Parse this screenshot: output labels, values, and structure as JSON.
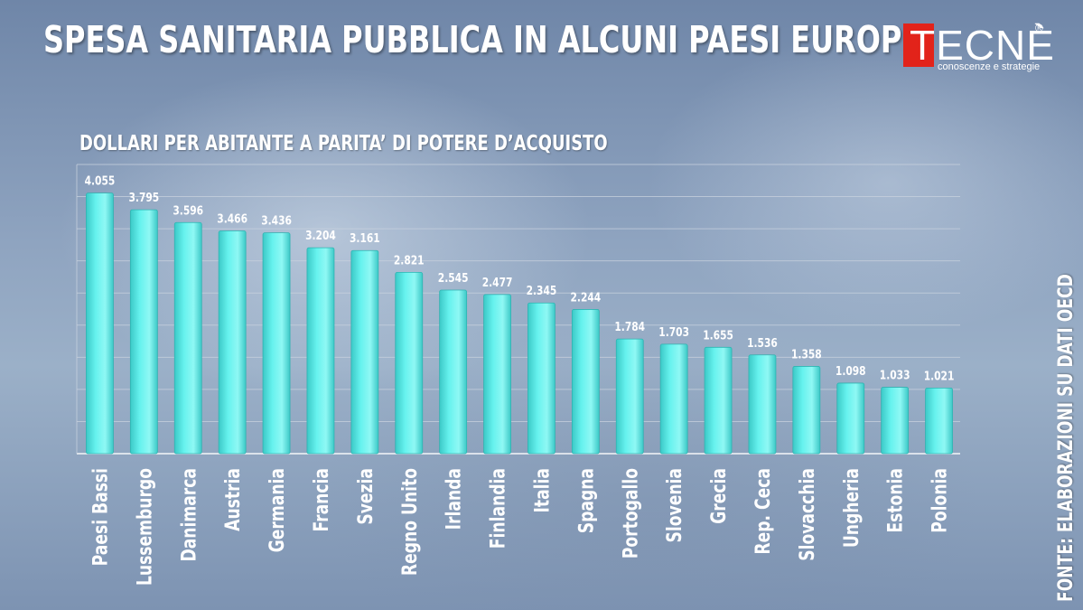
{
  "title": "SPESA SANITARIA PUBBLICA IN ALCUNI PAESI EUROPEI",
  "logo": {
    "letter": "T",
    "rest": "ECNÈ",
    "reg": "®",
    "tagline": "conoscenze e strategie"
  },
  "source": "FONTE: ELABORAZIONI SU DATI OECD",
  "colors": {
    "bar": "#66f2ee",
    "bar_dark": "#3cc9c7",
    "grid": "#c8d2de",
    "logo_red": "#e2231a"
  },
  "chart_data": {
    "type": "bar",
    "title": "",
    "subtitle": "DOLLARI PER ABITANTE A PARITA’ DI POTERE D’ACQUISTO",
    "categories": [
      "Paesi Bassi",
      "Lussemburgo",
      "Danimarca",
      "Austria",
      "Germania",
      "Francia",
      "Svezia",
      "Regno Unito",
      "Irlanda",
      "Finlandia",
      "Italia",
      "Spagna",
      "Portogallo",
      "Slovenia",
      "Grecia",
      "Rep. Ceca",
      "Slovacchia",
      "Ungheria",
      "Estonia",
      "Polonia"
    ],
    "values": [
      4055,
      3795,
      3596,
      3466,
      3436,
      3204,
      3161,
      2821,
      2545,
      2477,
      2345,
      2244,
      1784,
      1703,
      1655,
      1536,
      1358,
      1098,
      1033,
      1021
    ],
    "value_labels": [
      "4.055",
      "3.795",
      "3.596",
      "3.466",
      "3.436",
      "3.204",
      "3.161",
      "2.821",
      "2.545",
      "2.477",
      "2.345",
      "2.244",
      "1.784",
      "1.703",
      "1.655",
      "1.536",
      "1.358",
      "1.098",
      "1.033",
      "1.021"
    ],
    "ylim": [
      0,
      4500
    ],
    "grid": true,
    "legend": "none"
  }
}
